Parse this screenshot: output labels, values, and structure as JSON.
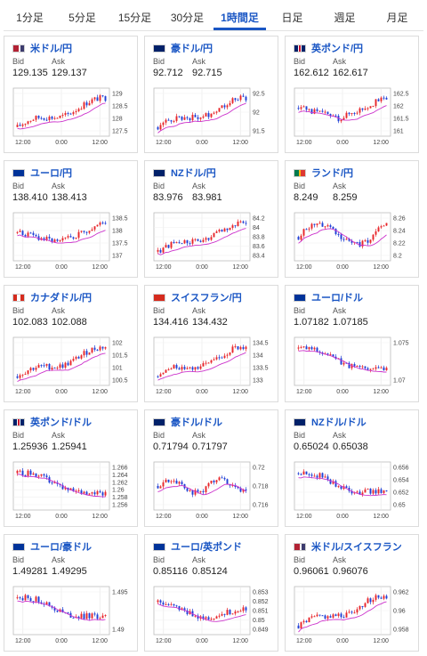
{
  "tabs": [
    {
      "label": "1分足",
      "active": false
    },
    {
      "label": "5分足",
      "active": false
    },
    {
      "label": "15分足",
      "active": false
    },
    {
      "label": "30分足",
      "active": false
    },
    {
      "label": "1時間足",
      "active": true
    },
    {
      "label": "日足",
      "active": false
    },
    {
      "label": "週足",
      "active": false
    },
    {
      "label": "月足",
      "active": false
    }
  ],
  "bid_label": "Bid",
  "ask_label": "Ask",
  "x_ticks": [
    "12:00",
    "0:00",
    "12:00"
  ],
  "colors": {
    "up": "#e8262b",
    "down": "#1f3fd6",
    "ma": "#cc33cc",
    "accent": "#1a56c4"
  },
  "pairs": [
    {
      "name": "米ドル/円",
      "flag": "us",
      "bid": "129.135",
      "ask": "129.137",
      "chart_data": {
        "type": "candlestick",
        "trend": "up",
        "yticks": [
          "129",
          "128.5",
          "128",
          "127.5"
        ]
      }
    },
    {
      "name": "豪ドル/円",
      "flag": "au",
      "bid": "92.712",
      "ask": "92.715",
      "chart_data": {
        "type": "candlestick",
        "trend": "up",
        "yticks": [
          "92.5",
          "92",
          "91.5"
        ]
      }
    },
    {
      "name": "英ポンド/円",
      "flag": "gb",
      "bid": "162.612",
      "ask": "162.617",
      "chart_data": {
        "type": "candlestick",
        "trend": "v",
        "yticks": [
          "162.5",
          "162",
          "161.5",
          "161"
        ]
      }
    },
    {
      "name": "ユーロ/円",
      "flag": "eu",
      "bid": "138.410",
      "ask": "138.413",
      "chart_data": {
        "type": "candlestick",
        "trend": "v",
        "yticks": [
          "138.5",
          "138",
          "137.5",
          "137"
        ]
      }
    },
    {
      "name": "NZドル/円",
      "flag": "nz",
      "bid": "83.976",
      "ask": "83.981",
      "chart_data": {
        "type": "candlestick",
        "trend": "up",
        "yticks": [
          "84.2",
          "84",
          "83.8",
          "83.6",
          "83.4"
        ]
      }
    },
    {
      "name": "ランド/円",
      "flag": "za",
      "bid": "8.249",
      "ask": "8.259",
      "chart_data": {
        "type": "candlestick",
        "trend": "wave",
        "yticks": [
          "8.26",
          "8.24",
          "8.22",
          "8.2"
        ]
      }
    },
    {
      "name": "カナダドル/円",
      "flag": "ca",
      "bid": "102.083",
      "ask": "102.088",
      "chart_data": {
        "type": "candlestick",
        "trend": "up",
        "yticks": [
          "102",
          "101.5",
          "101",
          "100.5"
        ]
      }
    },
    {
      "name": "スイスフラン/円",
      "flag": "ch",
      "bid": "134.416",
      "ask": "134.432",
      "chart_data": {
        "type": "candlestick",
        "trend": "up",
        "yticks": [
          "134.5",
          "134",
          "133.5",
          "133"
        ]
      }
    },
    {
      "name": "ユーロ/ドル",
      "flag": "eu",
      "bid": "1.07182",
      "ask": "1.07185",
      "chart_data": {
        "type": "candlestick",
        "trend": "down",
        "yticks": [
          "1.075",
          "1.07"
        ]
      }
    },
    {
      "name": "英ポンド/ドル",
      "flag": "gb",
      "bid": "1.25936",
      "ask": "1.25941",
      "chart_data": {
        "type": "candlestick",
        "trend": "down",
        "yticks": [
          "1.266",
          "1.264",
          "1.262",
          "1.26",
          "1.258",
          "1.256"
        ]
      }
    },
    {
      "name": "豪ドル/ドル",
      "flag": "au",
      "bid": "0.71794",
      "ask": "0.71797",
      "chart_data": {
        "type": "candlestick",
        "trend": "flat",
        "yticks": [
          "0.72",
          "0.718",
          "0.716"
        ]
      }
    },
    {
      "name": "NZドル/ドル",
      "flag": "nz",
      "bid": "0.65024",
      "ask": "0.65038",
      "chart_data": {
        "type": "candlestick",
        "trend": "down",
        "yticks": [
          "0.656",
          "0.654",
          "0.652",
          "0.65"
        ]
      }
    },
    {
      "name": "ユーロ/豪ドル",
      "flag": "eu",
      "bid": "1.49281",
      "ask": "1.49295",
      "chart_data": {
        "type": "candlestick",
        "trend": "down",
        "yticks": [
          "1.495",
          "1.49"
        ]
      }
    },
    {
      "name": "ユーロ/英ポンド",
      "flag": "eu",
      "bid": "0.85116",
      "ask": "0.85124",
      "chart_data": {
        "type": "candlestick",
        "trend": "dip",
        "yticks": [
          "0.853",
          "0.852",
          "0.851",
          "0.85",
          "0.849"
        ]
      }
    },
    {
      "name": "米ドル/スイスフラン",
      "flag": "us",
      "bid": "0.96061",
      "ask": "0.96076",
      "chart_data": {
        "type": "candlestick",
        "trend": "up",
        "yticks": [
          "0.962",
          "0.96",
          "0.958"
        ]
      }
    }
  ]
}
